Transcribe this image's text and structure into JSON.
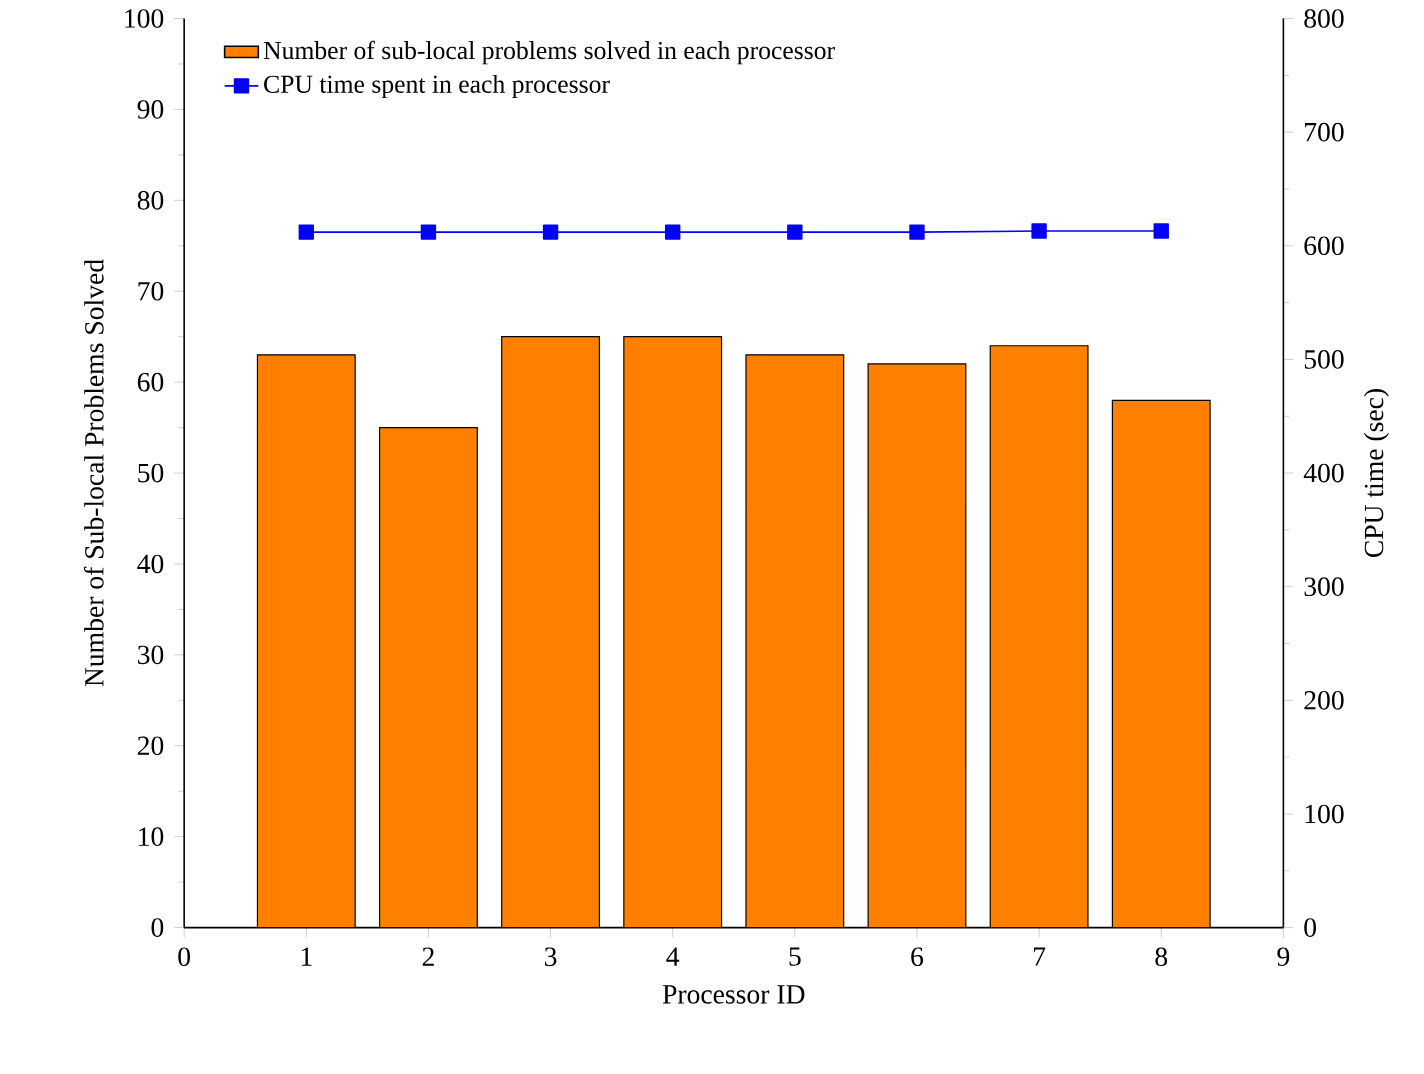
{
  "chart_data": {
    "type": "bar",
    "xlabel": "Processor ID",
    "ylabel": "Number of Sub-local Problems Solved",
    "y2label": "CPU time (sec)",
    "x": [
      1,
      2,
      3,
      4,
      5,
      6,
      7,
      8
    ],
    "xlim": [
      0,
      9
    ],
    "xticks": [
      0,
      1,
      2,
      3,
      4,
      5,
      6,
      7,
      8,
      9
    ],
    "ylim": [
      0,
      100
    ],
    "yticks": [
      0,
      10,
      20,
      30,
      40,
      50,
      60,
      70,
      80,
      90,
      100
    ],
    "y2lim": [
      0,
      800
    ],
    "y2ticks": [
      0,
      100,
      200,
      300,
      400,
      500,
      600,
      700,
      800
    ],
    "legend": "top left",
    "grid": false,
    "series": [
      {
        "name": "Number of sub-local problems solved in each processor",
        "color": "#ff8000",
        "values": [
          63,
          55,
          65,
          65,
          63,
          62,
          64,
          58
        ]
      },
      {
        "name": "CPU time spent in each processor",
        "type": "line",
        "axis": "y2",
        "marker": "square",
        "color": "#0000ff",
        "values": [
          612,
          612,
          612,
          612,
          612,
          612,
          613,
          613
        ]
      }
    ]
  }
}
